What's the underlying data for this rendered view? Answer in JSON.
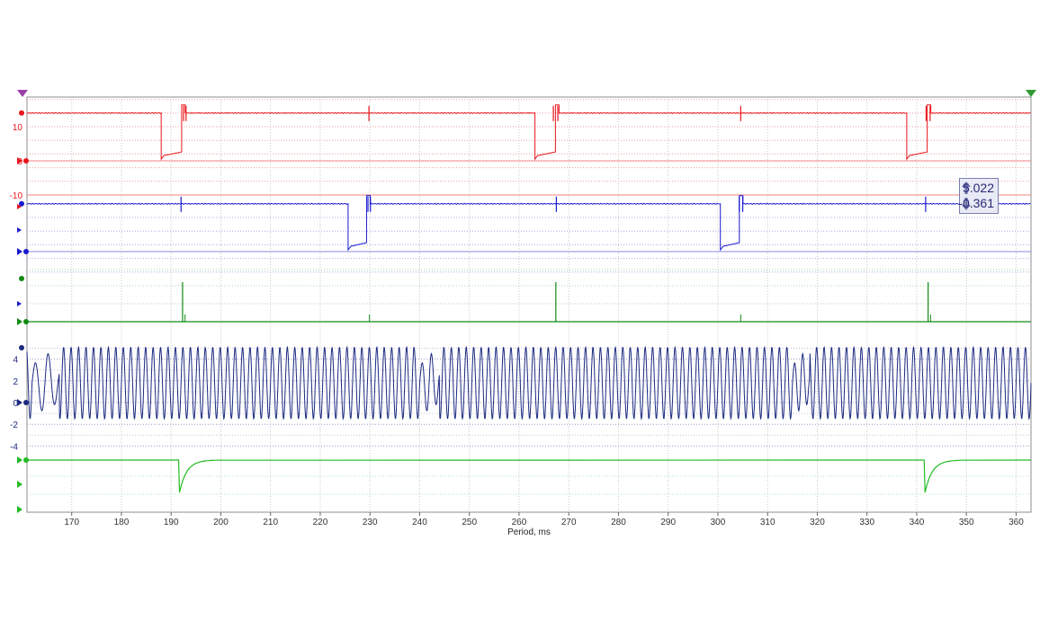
{
  "chart_data": {
    "type": "line",
    "xlabel": "Period, ms",
    "xlim": [
      161,
      363
    ],
    "xticks": [
      170,
      180,
      190,
      200,
      210,
      220,
      230,
      240,
      250,
      260,
      270,
      280,
      290,
      300,
      310,
      320,
      330,
      340,
      350,
      360
    ],
    "grid": true,
    "colors": {
      "ch1": "#e8161c",
      "ch2": "#1b1bd0",
      "ch3": "#128a12",
      "ch4": "#1c2a80",
      "ch5": "#22bb22"
    },
    "series": [
      {
        "id": "ch1",
        "yticks": [
          "10",
          "0",
          "-10"
        ],
        "baseline": 14,
        "low": 0.5,
        "pulses": [
          [
            188,
            192.3
          ],
          [
            263.2,
            267.5
          ],
          [
            338,
            342.3
          ]
        ],
        "spikes": [
          192.5,
          193,
          229.8,
          266.9,
          267.8,
          304.6,
          341.9,
          342.7
        ]
      },
      {
        "id": "ch2",
        "baseline": 14,
        "low": 0.5,
        "pulses": [
          [
            225.6,
            229.5
          ],
          [
            300.5,
            304.5
          ]
        ],
        "spikes": [
          192,
          229.6,
          230.1,
          267.5,
          304.3,
          305,
          341.8
        ]
      },
      {
        "id": "ch3",
        "spikes": [
          192.3,
          267.4,
          342.3
        ],
        "small_spikes": [
          192.8,
          229.9,
          304.6,
          342.8
        ]
      },
      {
        "id": "ch4",
        "yticks": [
          "4",
          "2",
          "0",
          "-2",
          "-4"
        ],
        "ylim": [
          -5.5,
          5.3
        ],
        "amplitude": 3.3,
        "offset": 1.8,
        "period_ms": 1.5,
        "gaps": [
          [
            162,
            167.5
          ],
          [
            240,
            244
          ],
          [
            315,
            318.5
          ]
        ]
      },
      {
        "id": "ch5",
        "dips": [
          191.5,
          341.5
        ]
      }
    ]
  },
  "cursor": {
    "upper": "5.022",
    "lower": "-0.361"
  }
}
